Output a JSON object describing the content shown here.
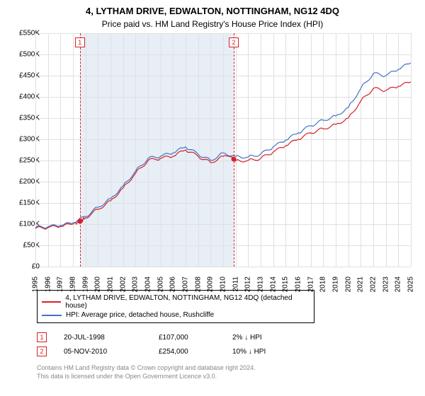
{
  "title": "4, LYTHAM DRIVE, EDWALTON, NOTTINGHAM, NG12 4DQ",
  "subtitle": "Price paid vs. HM Land Registry's House Price Index (HPI)",
  "chart": {
    "type": "line",
    "background_color": "#ffffff",
    "grid_color": "#e0e0e0",
    "shade_color": "#e7eef6",
    "shade_xrange": [
      1998.55,
      2010.85
    ],
    "xlim": [
      1995,
      2025
    ],
    "ylim": [
      0,
      550000
    ],
    "ytick_step": 50000,
    "yticks": [
      "£0",
      "£50K",
      "£100K",
      "£150K",
      "£200K",
      "£250K",
      "£300K",
      "£350K",
      "£400K",
      "£450K",
      "£500K",
      "£550K"
    ],
    "xticks": [
      1995,
      1996,
      1997,
      1998,
      1999,
      2000,
      2001,
      2002,
      2003,
      2004,
      2005,
      2006,
      2007,
      2008,
      2009,
      2010,
      2011,
      2012,
      2013,
      2014,
      2015,
      2016,
      2017,
      2018,
      2019,
      2020,
      2021,
      2022,
      2023,
      2024,
      2025
    ],
    "series": [
      {
        "name": "4, LYTHAM DRIVE, EDWALTON, NOTTINGHAM, NG12 4DQ (detached house)",
        "color": "#d92027",
        "points": [
          [
            1995,
            90000
          ],
          [
            1996,
            92000
          ],
          [
            1997,
            95000
          ],
          [
            1998,
            100000
          ],
          [
            1998.55,
            107000
          ],
          [
            1999,
            115000
          ],
          [
            2000,
            135000
          ],
          [
            2001,
            155000
          ],
          [
            2002,
            185000
          ],
          [
            2003,
            220000
          ],
          [
            2004,
            250000
          ],
          [
            2005,
            255000
          ],
          [
            2006,
            260000
          ],
          [
            2007,
            275000
          ],
          [
            2008,
            260000
          ],
          [
            2009,
            245000
          ],
          [
            2010,
            260000
          ],
          [
            2010.85,
            254000
          ],
          [
            2011,
            250000
          ],
          [
            2012,
            250000
          ],
          [
            2013,
            255000
          ],
          [
            2014,
            270000
          ],
          [
            2015,
            285000
          ],
          [
            2016,
            300000
          ],
          [
            2017,
            315000
          ],
          [
            2018,
            325000
          ],
          [
            2019,
            335000
          ],
          [
            2020,
            350000
          ],
          [
            2021,
            390000
          ],
          [
            2022,
            420000
          ],
          [
            2023,
            415000
          ],
          [
            2024,
            425000
          ],
          [
            2025,
            435000
          ]
        ]
      },
      {
        "name": "HPI: Average price, detached house, Rushcliffe",
        "color": "#4472c4",
        "points": [
          [
            1995,
            92000
          ],
          [
            1996,
            94000
          ],
          [
            1997,
            97000
          ],
          [
            1998,
            103000
          ],
          [
            1999,
            118000
          ],
          [
            2000,
            140000
          ],
          [
            2001,
            160000
          ],
          [
            2002,
            190000
          ],
          [
            2003,
            225000
          ],
          [
            2004,
            255000
          ],
          [
            2005,
            260000
          ],
          [
            2006,
            268000
          ],
          [
            2007,
            282000
          ],
          [
            2008,
            265000
          ],
          [
            2009,
            250000
          ],
          [
            2010,
            268000
          ],
          [
            2011,
            260000
          ],
          [
            2012,
            258000
          ],
          [
            2013,
            265000
          ],
          [
            2014,
            282000
          ],
          [
            2015,
            298000
          ],
          [
            2016,
            315000
          ],
          [
            2017,
            332000
          ],
          [
            2018,
            345000
          ],
          [
            2019,
            355000
          ],
          [
            2020,
            375000
          ],
          [
            2021,
            420000
          ],
          [
            2022,
            455000
          ],
          [
            2023,
            450000
          ],
          [
            2024,
            465000
          ],
          [
            2025,
            480000
          ]
        ]
      }
    ],
    "markers": [
      {
        "x": 1998.55,
        "y": 107000,
        "color": "#d92027"
      },
      {
        "x": 2010.85,
        "y": 254000,
        "color": "#d92027"
      }
    ],
    "vlines": [
      {
        "x": 1998.55,
        "color": "#d92027",
        "badge": "1"
      },
      {
        "x": 2010.85,
        "color": "#d92027",
        "badge": "2"
      }
    ]
  },
  "legend": {
    "rows": [
      {
        "color": "#d92027",
        "label": "4, LYTHAM DRIVE, EDWALTON, NOTTINGHAM, NG12 4DQ (detached house)"
      },
      {
        "color": "#4472c4",
        "label": "HPI: Average price, detached house, Rushcliffe"
      }
    ]
  },
  "events": [
    {
      "num": "1",
      "color": "#d92027",
      "date": "20-JUL-1998",
      "price": "£107,000",
      "pct": "2%",
      "dir": "↓",
      "ref": "HPI"
    },
    {
      "num": "2",
      "color": "#d92027",
      "date": "05-NOV-2010",
      "price": "£254,000",
      "pct": "10%",
      "dir": "↓",
      "ref": "HPI"
    }
  ],
  "footer": {
    "l1": "Contains HM Land Registry data © Crown copyright and database right 2024.",
    "l2": "This data is licensed under the Open Government Licence v3.0."
  }
}
